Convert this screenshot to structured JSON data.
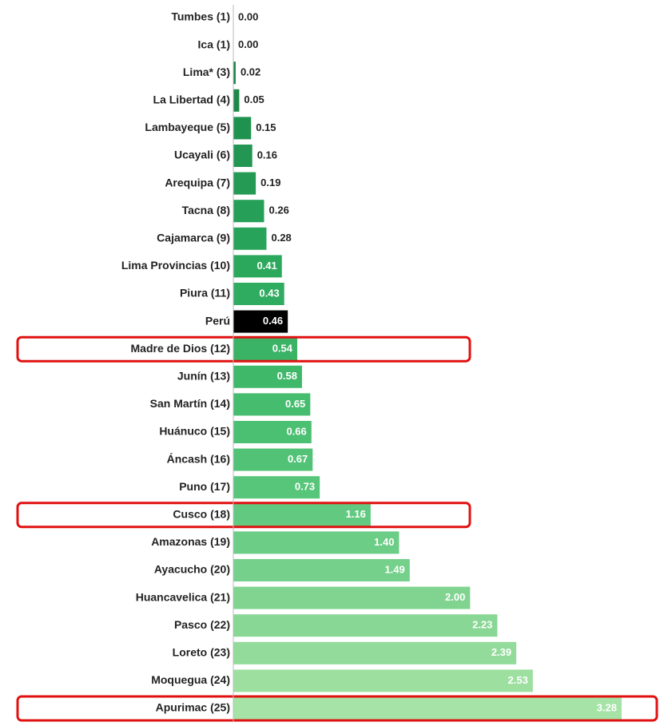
{
  "chart_data": {
    "type": "barh",
    "categories": [
      "Tumbes (1)",
      "Ica (1)",
      "Lima* (3)",
      "La Libertad (4)",
      "Lambayeque (5)",
      "Ucayali (6)",
      "Arequipa (7)",
      "Tacna (8)",
      "Cajamarca (9)",
      "Lima Provincias (10)",
      "Piura (11)",
      "Perú",
      "Madre de Dios (12)",
      "Junín (13)",
      "San Martín (14)",
      "Huánuco (15)",
      "Áncash (16)",
      "Puno (17)",
      "Cusco (18)",
      "Amazonas (19)",
      "Ayacucho (20)",
      "Huancavelica (21)",
      "Pasco (22)",
      "Loreto (23)",
      "Moquegua (24)",
      "Apurimac (25)"
    ],
    "values": [
      0,
      0,
      0.02,
      0.05,
      0.15,
      0.16,
      0.19,
      0.26,
      0.28,
      0.41,
      0.43,
      0.46,
      0.54,
      0.58,
      0.65,
      0.66,
      0.67,
      0.73,
      1.16,
      1.4,
      1.49,
      2,
      2.23,
      2.39,
      2.53,
      3.28
    ],
    "value_labels": [
      "0.00",
      "0.00",
      "0.02",
      "0.05",
      "0.15",
      "0.16",
      "0.19",
      "0.26",
      "0.28",
      "0.41",
      "0.43",
      "0.46",
      "0.54",
      "0.58",
      "0.65",
      "0.66",
      "0.67",
      "0.73",
      "1.16",
      "1.40",
      "1.49",
      "2.00",
      "2.23",
      "2.39",
      "2.53",
      "3.28"
    ],
    "colors": [
      "#1a7f45",
      "#1a7f45",
      "#1c8448",
      "#1e884a",
      "#209250",
      "#229652",
      "#249a55",
      "#26a058",
      "#28a45a",
      "#2ca85d",
      "#30ac60",
      "#000000",
      "#3ab366",
      "#40b86a",
      "#46bc6e",
      "#4cc072",
      "#52c376",
      "#58c67a",
      "#62ca80",
      "#6ccd86",
      "#74d08a",
      "#80d490",
      "#88d794",
      "#92db9a",
      "#9cdf9f",
      "#a6e3a6"
    ],
    "xlim": [
      0,
      3.28
    ],
    "highlighted": [
      "Madre de Dios (12)",
      "Cusco (18)",
      "Apurimac (25)"
    ],
    "highlight_color": "#e01010"
  }
}
